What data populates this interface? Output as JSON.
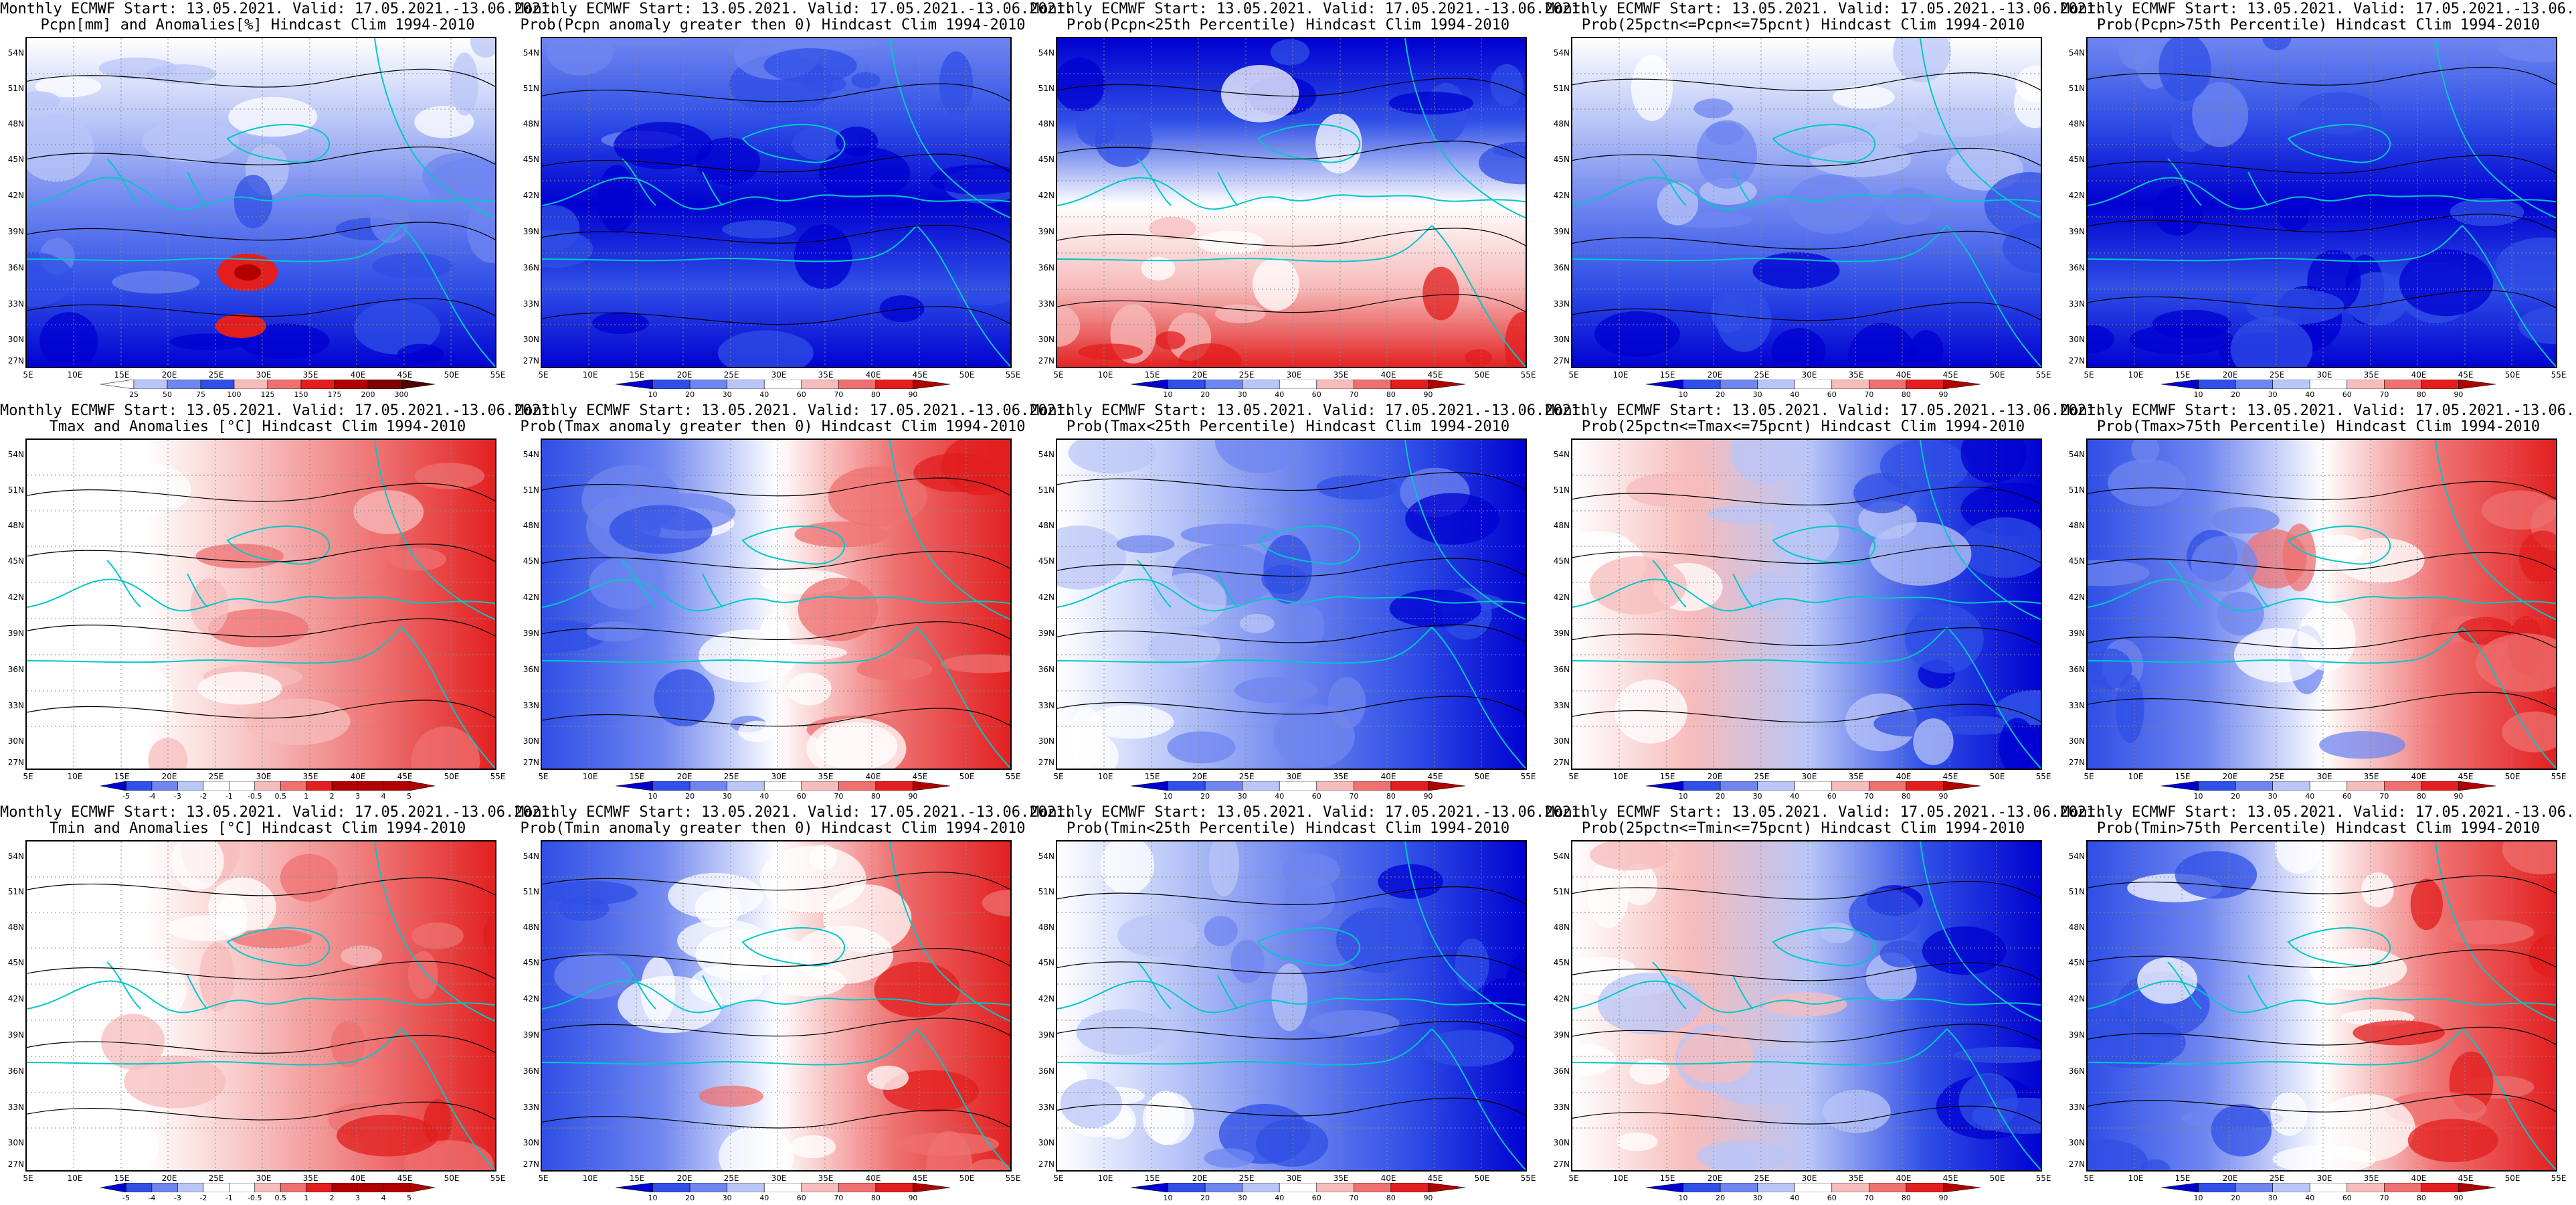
{
  "header_line": "Monthly ECMWF Start: 13.05.2021. Valid: 17.05.2021.-13.06.2021.",
  "lat_labels": [
    "54N",
    "51N",
    "48N",
    "45N",
    "42N",
    "39N",
    "36N",
    "33N",
    "30N",
    "27N"
  ],
  "lon_labels": [
    "5E",
    "10E",
    "15E",
    "20E",
    "25E",
    "30E",
    "35E",
    "40E",
    "45E",
    "50E",
    "55E"
  ],
  "colorbars": {
    "prec_abs": [
      "25",
      "50",
      "75",
      "100",
      "125",
      "150",
      "175",
      "200",
      "300"
    ],
    "prob": [
      "10",
      "20",
      "30",
      "40",
      "60",
      "70",
      "80",
      "90"
    ],
    "anom": [
      "-5",
      "-4",
      "-3",
      "-2",
      "-1",
      "-0.5",
      "0.5",
      "1",
      "2",
      "3",
      "4",
      "5"
    ]
  },
  "panels": [
    {
      "id": "p00",
      "subtitle": "Pcpn[mm] and Anomalies[%] Hindcast Clim 1994-2010",
      "cbar": "prec_abs",
      "pattern": "precip_anom"
    },
    {
      "id": "p01",
      "subtitle": "Prob(Pcpn anomaly greater then 0) Hindcast Clim 1994-2010",
      "cbar": "prob",
      "pattern": "mostly_blue"
    },
    {
      "id": "p02",
      "subtitle": "Prob(Pcpn<25th Percentile) Hindcast Clim 1994-2010",
      "cbar": "prob",
      "pattern": "blue_north_red_south"
    },
    {
      "id": "p03",
      "subtitle": "Prob(25pctn<=Pcpn<=75pcnt) Hindcast Clim 1994-2010",
      "cbar": "prob",
      "pattern": "white_north_blue_south"
    },
    {
      "id": "p04",
      "subtitle": "Prob(Pcpn>75th Percentile) Hindcast Clim 1994-2010",
      "cbar": "prob",
      "pattern": "mostly_blue"
    },
    {
      "id": "p10",
      "subtitle": "Tmax and Anomalies [°C] Hindcast Clim 1994-2010",
      "cbar": "anom",
      "pattern": "red_east"
    },
    {
      "id": "p11",
      "subtitle": "Prob(Tmax anomaly greater then 0) Hindcast Clim 1994-2010",
      "cbar": "prob",
      "pattern": "blue_west_red_east"
    },
    {
      "id": "p12",
      "subtitle": "Prob(Tmax<25th Percentile) Hindcast Clim 1994-2010",
      "cbar": "prob",
      "pattern": "white_west_blue_east"
    },
    {
      "id": "p13",
      "subtitle": "Prob(25pctn<=Tmax<=75pcnt) Hindcast Clim 1994-2010",
      "cbar": "prob",
      "pattern": "pink_west_blue_east"
    },
    {
      "id": "p14",
      "subtitle": "Prob(Tmax>75th Percentile) Hindcast Clim 1994-2010",
      "cbar": "prob",
      "pattern": "blue_west_red_east"
    },
    {
      "id": "p20",
      "subtitle": "Tmin and Anomalies [°C] Hindcast Clim 1994-2010",
      "cbar": "anom",
      "pattern": "red_east"
    },
    {
      "id": "p21",
      "subtitle": "Prob(Tmin anomaly greater then 0) Hindcast Clim 1994-2010",
      "cbar": "prob",
      "pattern": "blue_west_red_east"
    },
    {
      "id": "p22",
      "subtitle": "Prob(Tmin<25th Percentile) Hindcast Clim 1994-2010",
      "cbar": "prob",
      "pattern": "white_west_blue_east"
    },
    {
      "id": "p23",
      "subtitle": "Prob(25pctn<=Tmin<=75pcnt) Hindcast Clim 1994-2010",
      "cbar": "prob",
      "pattern": "pink_west_blue_east"
    },
    {
      "id": "p24",
      "subtitle": "Prob(Tmin>75th Percentile) Hindcast Clim 1994-2010",
      "cbar": "prob",
      "pattern": "blue_west_red_east"
    }
  ],
  "colors": {
    "deep_blue": "#0000d0",
    "blue": "#2f4fe6",
    "mid_blue": "#6f86f0",
    "light_blue": "#b9c6f7",
    "white": "#ffffff",
    "light_red": "#f7bcbc",
    "mid_red": "#ef7070",
    "red": "#e21e1e",
    "deep_red": "#b00000",
    "coast": "#00c8c8",
    "contour": "#000000"
  }
}
